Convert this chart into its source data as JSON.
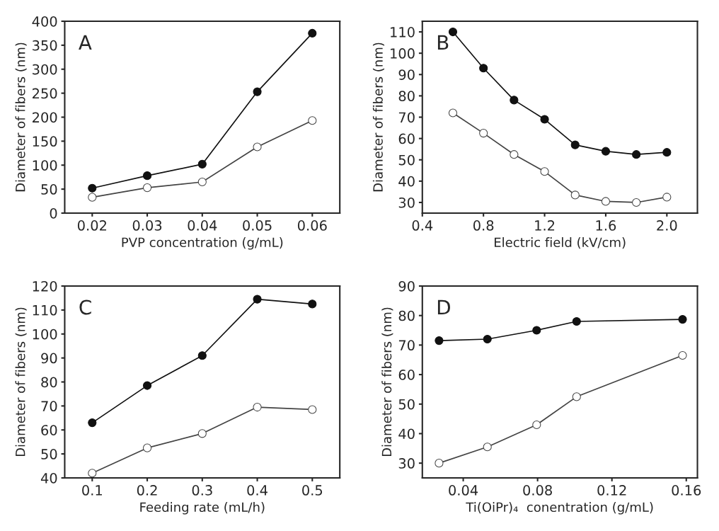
{
  "chart_data": [
    {
      "type": "line",
      "annotations": [
        "A"
      ],
      "xlabel": "PVP concentration (g/mL)",
      "ylabel": "Diameter of fibers (nm)",
      "xlim": [
        0.015,
        0.065
      ],
      "xticks": [
        {
          "value": 0.02,
          "label": "0.02"
        },
        {
          "value": 0.03,
          "label": "0.03"
        },
        {
          "value": 0.04,
          "label": "0.04"
        },
        {
          "value": 0.05,
          "label": "0.05"
        },
        {
          "value": 0.06,
          "label": "0.06"
        }
      ],
      "ylim": [
        0,
        400
      ],
      "yticks": [
        0,
        50,
        100,
        150,
        200,
        250,
        300,
        350,
        400
      ],
      "marker": "circle",
      "x": [
        0.02,
        0.03,
        0.04,
        0.05,
        0.06
      ],
      "series": [
        {
          "color": "#111111",
          "values": [
            52,
            78,
            102,
            253,
            375
          ]
        },
        {
          "color": "#444444",
          "values": [
            33,
            53,
            65,
            138,
            193
          ]
        }
      ]
    },
    {
      "type": "line",
      "annotations": [
        "B"
      ],
      "xlabel": "Electric field (kV/cm)",
      "ylabel": "Diameter of fibers (nm)",
      "xlim": [
        0.4,
        2.2
      ],
      "xticks": [
        0.4,
        0.8,
        1.2,
        1.6,
        {
          "value": 2.0,
          "label": "2.0"
        }
      ],
      "ylim": [
        25,
        115
      ],
      "yticks": [
        30,
        40,
        50,
        60,
        70,
        80,
        90,
        100,
        110
      ],
      "marker": "circle",
      "x": [
        0.6,
        0.8,
        1.0,
        1.2,
        1.4,
        1.6,
        1.8,
        2.0
      ],
      "series": [
        {
          "color": "#111111",
          "values": [
            110,
            93,
            78,
            69,
            57,
            54,
            52.5,
            53.5
          ]
        },
        {
          "color": "#444444",
          "values": [
            72,
            62.5,
            52.5,
            44.5,
            33.5,
            30.5,
            30,
            32.5
          ]
        }
      ]
    },
    {
      "type": "line",
      "annotations": [
        "C"
      ],
      "xlabel": "Feeding rate (mL/h)",
      "ylabel": "Diameter of fibers (nm)",
      "xlim": [
        0.05,
        0.55
      ],
      "xticks": [
        0.1,
        0.2,
        0.3,
        0.4,
        0.5
      ],
      "ylim": [
        40,
        120
      ],
      "yticks": [
        40,
        50,
        60,
        70,
        80,
        90,
        100,
        110,
        120
      ],
      "marker": "circle",
      "x": [
        0.1,
        0.2,
        0.3,
        0.4,
        0.5
      ],
      "series": [
        {
          "color": "#111111",
          "values": [
            63,
            78.5,
            91,
            114.5,
            112.5
          ]
        },
        {
          "color": "#444444",
          "values": [
            42,
            52.5,
            58.5,
            69.5,
            68.5
          ]
        }
      ]
    },
    {
      "type": "line",
      "annotations": [
        "D"
      ],
      "xlabel": "Ti(OiPr)₄  conentration (g/mL)",
      "ylabel": "Diameter of fibers (nm)",
      "xlim": [
        0.018,
        0.166
      ],
      "xticks": [
        0.04,
        0.08,
        0.12,
        0.16
      ],
      "ylim": [
        25,
        90
      ],
      "yticks": [
        30,
        40,
        50,
        60,
        70,
        80,
        90
      ],
      "marker": "circle",
      "x": [
        0.027,
        0.053,
        0.0795,
        0.101,
        0.158
      ],
      "series": [
        {
          "color": "#111111",
          "values": [
            71.5,
            72,
            75,
            78,
            78.7
          ]
        },
        {
          "color": "#444444",
          "values": [
            30,
            35.5,
            43,
            52.5,
            66.5
          ]
        }
      ]
    }
  ]
}
